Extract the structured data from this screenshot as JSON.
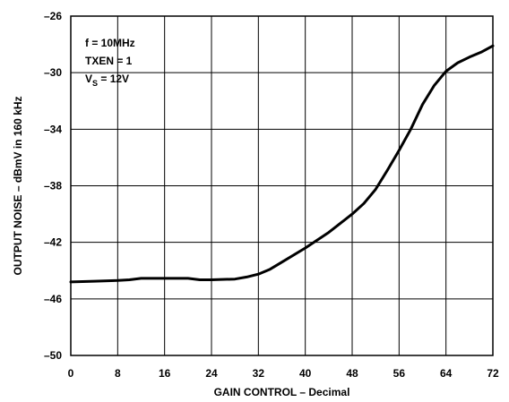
{
  "chart_data": {
    "type": "line",
    "xlabel": "GAIN CONTROL – Decimal",
    "ylabel": "OUTPUT NOISE – dBmV in 160 kHz",
    "xlim": [
      0,
      72
    ],
    "ylim": [
      -50,
      -26
    ],
    "xticks": [
      0,
      8,
      16,
      24,
      32,
      40,
      48,
      56,
      64,
      72
    ],
    "yticks": [
      -26,
      -30,
      -34,
      -38,
      -42,
      -46,
      -50
    ],
    "xtick_labels": [
      "0",
      "8",
      "16",
      "24",
      "32",
      "40",
      "48",
      "56",
      "64",
      "72"
    ],
    "ytick_labels": [
      "–26",
      "–30",
      "–34",
      "–38",
      "–42",
      "–46",
      "–50"
    ],
    "grid": true,
    "annotations": {
      "line1": "f = 10MHz",
      "line2": "TXEN = 1",
      "line3_prefix": "V",
      "line3_sub": "S",
      "line3_suffix": " = 12V"
    },
    "series": [
      {
        "x": [
          0,
          4,
          8,
          10,
          12,
          16,
          20,
          22,
          24,
          28,
          30,
          32,
          34,
          36,
          40,
          44,
          48,
          50,
          52,
          54,
          56,
          58,
          60,
          62,
          64,
          66,
          68,
          70,
          72
        ],
        "y": [
          -44.8,
          -44.75,
          -44.7,
          -44.65,
          -44.55,
          -44.55,
          -44.55,
          -44.65,
          -44.65,
          -44.6,
          -44.45,
          -44.25,
          -43.9,
          -43.4,
          -42.4,
          -41.3,
          -40.0,
          -39.25,
          -38.25,
          -36.9,
          -35.5,
          -34.0,
          -32.25,
          -30.9,
          -29.9,
          -29.3,
          -28.9,
          -28.55,
          -28.1
        ]
      }
    ]
  }
}
